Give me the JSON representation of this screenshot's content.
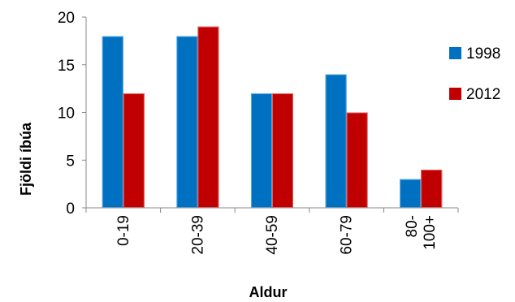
{
  "chart_data": {
    "type": "bar",
    "categories": [
      "0-19",
      "20-39",
      "40-59",
      "60-79",
      "80-\n100+"
    ],
    "series": [
      {
        "name": "1998",
        "values": [
          18,
          18,
          12,
          14,
          3
        ],
        "color": "#0070C0"
      },
      {
        "name": "2012",
        "values": [
          12,
          19,
          12,
          10,
          4
        ],
        "color": "#C00000"
      }
    ],
    "xlabel": "Aldur",
    "ylabel": "Fjöldi íbúa",
    "ylim": [
      0,
      20
    ],
    "yticks": [
      0,
      5,
      10,
      15,
      20
    ],
    "grid": false,
    "legend": "right"
  }
}
